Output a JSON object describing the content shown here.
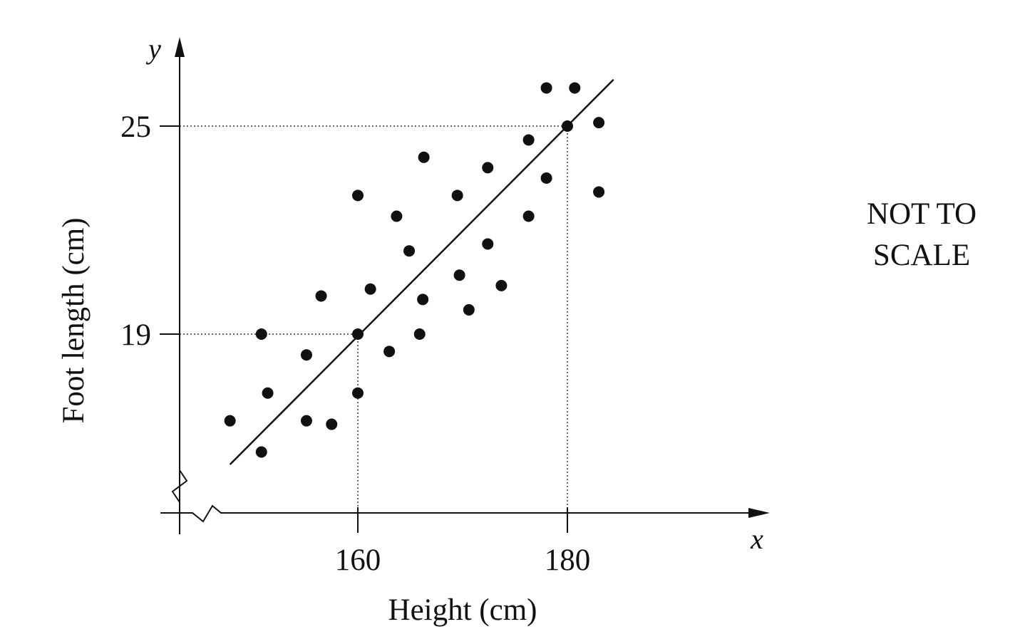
{
  "chart_data": {
    "type": "scatter",
    "title": "",
    "xlabel": "Height (cm)",
    "ylabel": "Foot length (cm)",
    "x_axis_symbol": "x",
    "y_axis_symbol": "y",
    "x_ticks": [
      {
        "value": 160,
        "label": "160"
      },
      {
        "value": 180,
        "label": "180"
      }
    ],
    "y_ticks": [
      {
        "value": 19,
        "label": "19"
      },
      {
        "value": 25,
        "label": "25"
      }
    ],
    "xlim": [
      143,
      199
    ],
    "ylim": [
      13.8,
      27.5
    ],
    "axis_breaks": true,
    "grid": false,
    "points": [
      {
        "x": 147.8,
        "y": 16.5
      },
      {
        "x": 150.8,
        "y": 15.6
      },
      {
        "x": 150.8,
        "y": 19.0
      },
      {
        "x": 151.4,
        "y": 17.3
      },
      {
        "x": 155.1,
        "y": 18.4
      },
      {
        "x": 155.1,
        "y": 16.5
      },
      {
        "x": 156.5,
        "y": 20.1
      },
      {
        "x": 157.5,
        "y": 16.4
      },
      {
        "x": 160.0,
        "y": 23.0
      },
      {
        "x": 160.0,
        "y": 19.0
      },
      {
        "x": 160.0,
        "y": 17.3
      },
      {
        "x": 161.2,
        "y": 20.3
      },
      {
        "x": 163.0,
        "y": 18.5
      },
      {
        "x": 163.7,
        "y": 22.4
      },
      {
        "x": 164.9,
        "y": 21.4
      },
      {
        "x": 165.9,
        "y": 19.0
      },
      {
        "x": 166.2,
        "y": 20.0
      },
      {
        "x": 166.3,
        "y": 24.1
      },
      {
        "x": 169.5,
        "y": 23.0
      },
      {
        "x": 169.7,
        "y": 20.7
      },
      {
        "x": 170.6,
        "y": 19.7
      },
      {
        "x": 172.4,
        "y": 23.8
      },
      {
        "x": 172.4,
        "y": 21.6
      },
      {
        "x": 173.7,
        "y": 20.4
      },
      {
        "x": 176.3,
        "y": 24.6
      },
      {
        "x": 176.3,
        "y": 22.4
      },
      {
        "x": 178.0,
        "y": 23.5
      },
      {
        "x": 178.0,
        "y": 26.1
      },
      {
        "x": 180.0,
        "y": 25.0
      },
      {
        "x": 180.7,
        "y": 26.1
      },
      {
        "x": 183.0,
        "y": 25.1
      },
      {
        "x": 183.0,
        "y": 23.1
      }
    ],
    "line_of_best_fit": {
      "from": {
        "x": 147.8,
        "y": 15.24
      },
      "to": {
        "x": 184.4,
        "y": 26.34
      }
    },
    "reference_lines": [
      {
        "x": 160,
        "y": 19
      },
      {
        "x": 180,
        "y": 25
      }
    ],
    "annotation": [
      "NOT TO",
      "SCALE"
    ]
  }
}
